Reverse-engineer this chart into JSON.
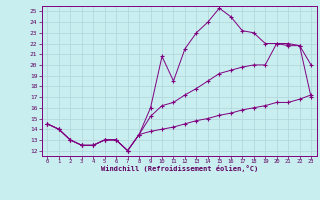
{
  "xlabel": "Windchill (Refroidissement éolien,°C)",
  "bg_color": "#c8eef0",
  "line_color": "#800080",
  "grid_color": "#b0d4d8",
  "x_ticks": [
    0,
    1,
    2,
    3,
    4,
    5,
    6,
    7,
    8,
    9,
    10,
    11,
    12,
    13,
    14,
    15,
    16,
    17,
    18,
    19,
    20,
    21,
    22,
    23
  ],
  "y_ticks": [
    12,
    13,
    14,
    15,
    16,
    17,
    18,
    19,
    20,
    21,
    22,
    23,
    24,
    25
  ],
  "xlim": [
    -0.5,
    23.5
  ],
  "ylim": [
    11.5,
    25.5
  ],
  "line1_x": [
    0,
    1,
    2,
    3,
    4,
    5,
    6,
    7,
    8,
    9,
    10,
    11,
    12,
    13,
    14,
    15,
    16,
    17,
    18,
    19,
    20,
    21,
    22,
    23
  ],
  "line1_y": [
    14.5,
    14.0,
    13.0,
    12.5,
    12.5,
    13.0,
    13.0,
    12.0,
    13.5,
    16.0,
    20.8,
    18.5,
    21.5,
    23.0,
    24.0,
    25.3,
    24.5,
    23.2,
    23.0,
    22.0,
    22.0,
    21.8,
    21.8,
    20.0
  ],
  "line2_x": [
    0,
    1,
    2,
    3,
    4,
    5,
    6,
    7,
    8,
    9,
    10,
    11,
    12,
    13,
    14,
    15,
    16,
    17,
    18,
    19,
    20,
    21,
    22,
    23
  ],
  "line2_y": [
    14.5,
    14.0,
    13.0,
    12.5,
    12.5,
    13.0,
    13.0,
    12.0,
    13.5,
    15.2,
    16.2,
    16.5,
    17.2,
    17.8,
    18.5,
    19.2,
    19.5,
    19.8,
    20.0,
    20.0,
    22.0,
    22.0,
    21.8,
    17.0
  ],
  "line3_x": [
    0,
    1,
    2,
    3,
    4,
    5,
    6,
    7,
    8,
    9,
    10,
    11,
    12,
    13,
    14,
    15,
    16,
    17,
    18,
    19,
    20,
    21,
    22,
    23
  ],
  "line3_y": [
    14.5,
    14.0,
    13.0,
    12.5,
    12.5,
    13.0,
    13.0,
    12.0,
    13.5,
    13.8,
    14.0,
    14.2,
    14.5,
    14.8,
    15.0,
    15.3,
    15.5,
    15.8,
    16.0,
    16.2,
    16.5,
    16.5,
    16.8,
    17.2
  ]
}
